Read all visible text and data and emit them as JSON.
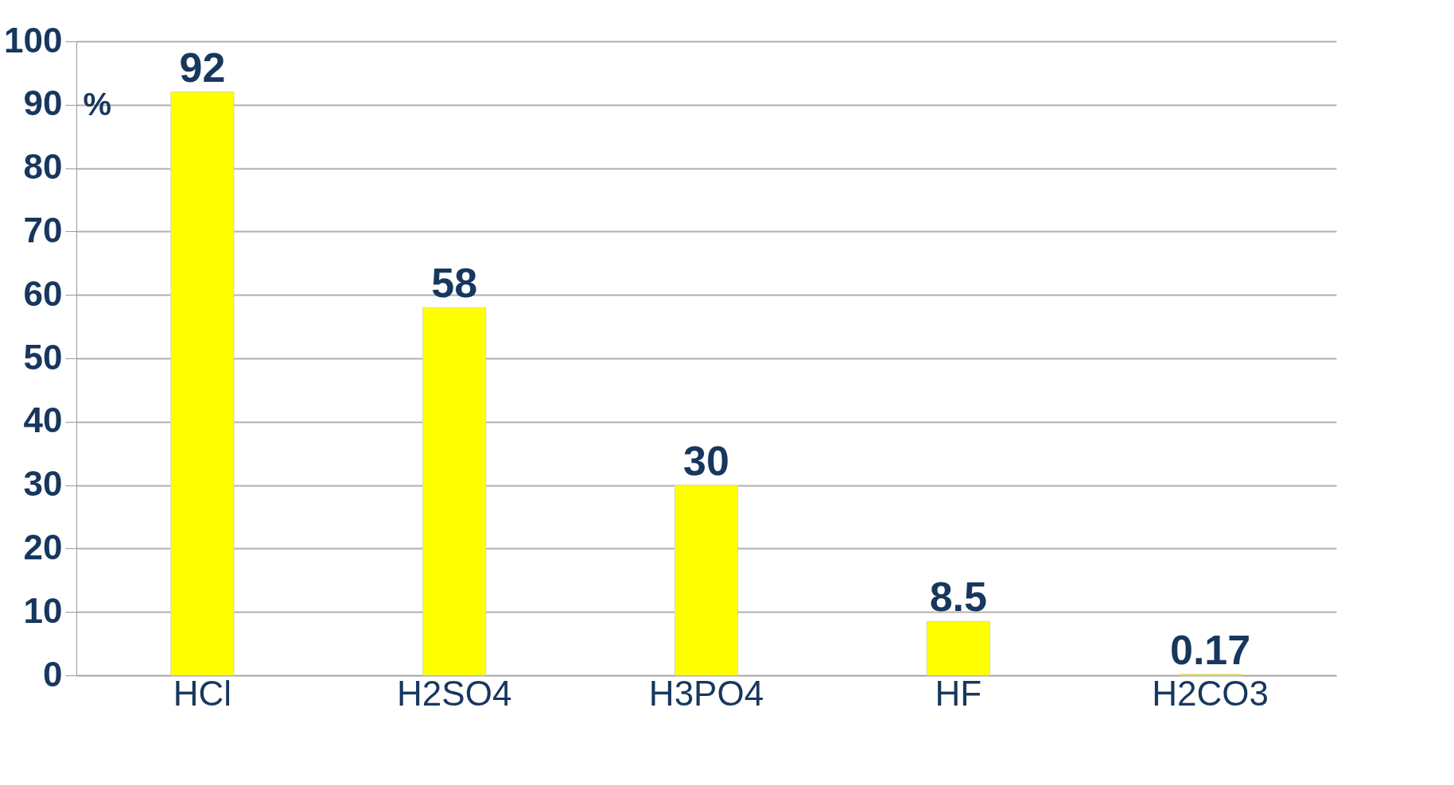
{
  "chart_data": {
    "type": "bar",
    "ylabel": "%",
    "categories": [
      "HCl",
      "H2SO4",
      "H3PO4",
      "HF",
      "H2CO3"
    ],
    "values": [
      92,
      58,
      30,
      8.5,
      0.17
    ],
    "color": "#ffff00",
    "ylim": [
      0,
      100
    ],
    "yticks": [
      0,
      10,
      20,
      30,
      40,
      50,
      60,
      70,
      80,
      90,
      100
    ],
    "grid": "y",
    "data_labels": true
  }
}
